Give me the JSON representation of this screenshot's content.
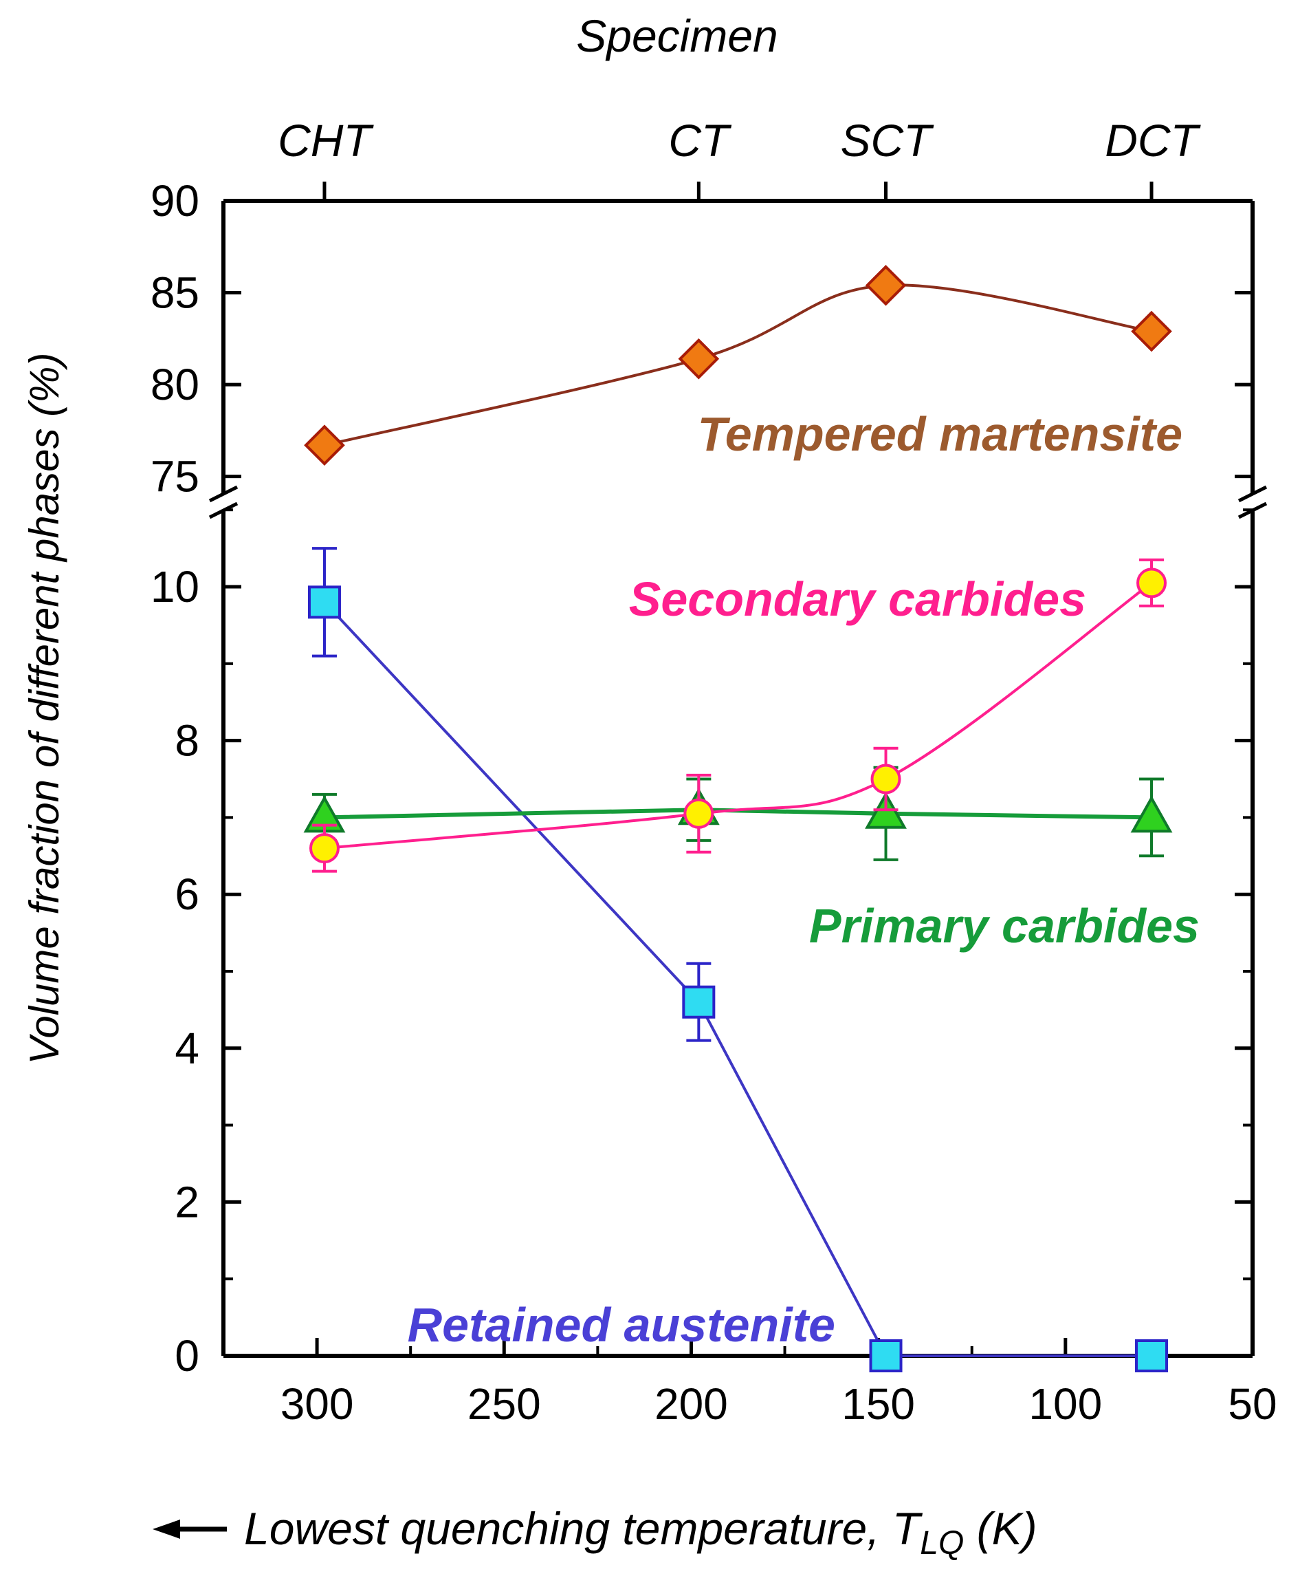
{
  "chart_data": {
    "type": "line",
    "title": "",
    "top_axis_title": "Specimen",
    "top_ticks": [
      {
        "label": "CHT",
        "x": 298
      },
      {
        "label": "CT",
        "x": 198
      },
      {
        "label": "SCT",
        "x": 148
      },
      {
        "label": "DCT",
        "x": 77
      }
    ],
    "xlabel_prefix": "Lowest quenching temperature, ",
    "xlabel_symbol": "T",
    "xlabel_subscript": "LQ",
    "xlabel_unit": " (K)",
    "xlim": [
      325,
      50
    ],
    "x_ticks": [
      300,
      250,
      200,
      150,
      100,
      50
    ],
    "ylabel": "Volume fraction of different phases (%)",
    "y_lower_range": [
      0,
      11.1
    ],
    "y_lower_ticks": [
      0,
      2,
      4,
      6,
      8,
      10
    ],
    "y_upper_range": [
      73.6,
      90
    ],
    "y_upper_ticks": [
      75,
      80,
      85,
      90
    ],
    "axis_break": true,
    "series": [
      {
        "name": "Tempered martensite",
        "panel": "upper",
        "color": "#8a2e1c",
        "label_color": "#9c5a2e",
        "marker": "diamond",
        "marker_fill": "#f07a12",
        "marker_stroke": "#a81c08",
        "x": [
          298,
          198,
          148,
          77
        ],
        "y": [
          76.7,
          81.4,
          85.4,
          82.9
        ],
        "err": [
          null,
          null,
          null,
          null
        ]
      },
      {
        "name": "Secondary carbides",
        "panel": "lower",
        "color": "#ff1f8e",
        "label_color": "#ff1f8e",
        "marker": "circle",
        "marker_fill": "#fff000",
        "marker_stroke": "#ff1f8e",
        "x": [
          298,
          198,
          148,
          77
        ],
        "y": [
          6.6,
          7.05,
          7.5,
          10.05
        ],
        "err": [
          0.3,
          0.5,
          0.4,
          0.3
        ]
      },
      {
        "name": "Primary carbides",
        "panel": "lower",
        "color": "#169c3a",
        "label_color": "#169c3a",
        "marker": "triangle",
        "marker_fill": "#2fd11f",
        "marker_stroke": "#0f7a2a",
        "x": [
          298,
          198,
          148,
          77
        ],
        "y": [
          7.0,
          7.1,
          7.05,
          7.0
        ],
        "err": [
          0.3,
          0.4,
          0.6,
          0.5
        ]
      },
      {
        "name": "Retained austenite",
        "panel": "lower",
        "color": "#3d36c4",
        "label_color": "#4a40d6",
        "marker": "square",
        "marker_fill": "#2fdcf2",
        "marker_stroke": "#2b24c8",
        "x": [
          298,
          198,
          148,
          77
        ],
        "y": [
          9.8,
          4.6,
          0.0,
          0.0
        ],
        "err": [
          0.7,
          0.5,
          null,
          null
        ]
      }
    ]
  }
}
